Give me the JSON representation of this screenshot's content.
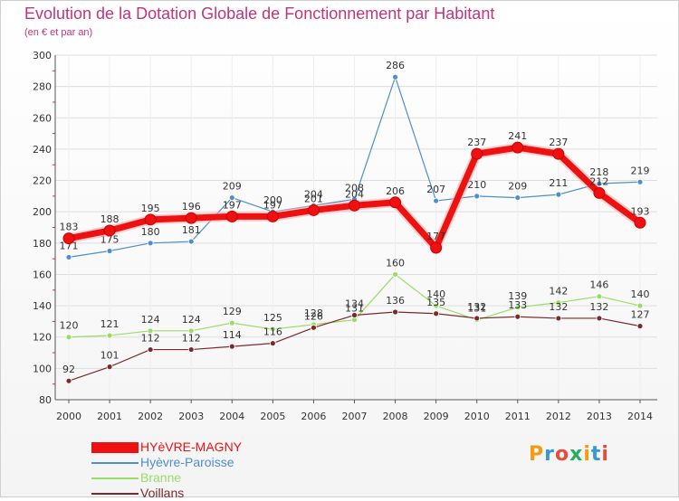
{
  "chart_data": {
    "type": "line",
    "title": "Evolution de la Dotation Globale de Fonctionnement par Habitant",
    "subtitle": "(en € et par an)",
    "xlabel": "",
    "ylabel": "",
    "ylim": [
      80,
      300
    ],
    "yticks": [
      80,
      100,
      120,
      140,
      160,
      180,
      200,
      220,
      240,
      260,
      280,
      300
    ],
    "grid": true,
    "legend": "bottom-left",
    "categories": [
      "2000",
      "2001",
      "2002",
      "2003",
      "2004",
      "2005",
      "2006",
      "2007",
      "2008",
      "2009",
      "2010",
      "2011",
      "2012",
      "2013",
      "2014"
    ],
    "series": [
      {
        "name": "Hyèvre-Paroisse",
        "color": "#4d8fcc",
        "values": [
          171,
          175,
          180,
          181,
          209,
          200,
          204,
          208,
          286,
          207,
          210,
          209,
          211,
          218,
          219
        ]
      },
      {
        "name": "Branne",
        "color": "#99dd66",
        "values": [
          120,
          121,
          124,
          124,
          129,
          125,
          128,
          131,
          160,
          140,
          131,
          139,
          142,
          146,
          140
        ]
      },
      {
        "name": "Voillans",
        "color": "#7a2a2a",
        "values": [
          92,
          101,
          112,
          112,
          114,
          116,
          126,
          134,
          136,
          135,
          132,
          133,
          132,
          132,
          127
        ]
      },
      {
        "name": "HYèVRE-MAGNY",
        "color": "#ee1111",
        "values": [
          183,
          188,
          195,
          196,
          197,
          197,
          201,
          204,
          206,
          177,
          237,
          241,
          237,
          212,
          193
        ]
      }
    ]
  },
  "legend_items": [
    {
      "label": "HYèVRE-MAGNY",
      "color": "#ee1111",
      "thickness": "thick"
    },
    {
      "label": "Hyèvre-Paroisse",
      "color": "#4d8fcc",
      "thickness": "thin"
    },
    {
      "label": "Branne",
      "color": "#99dd66",
      "thickness": "thin"
    },
    {
      "label": "Voillans",
      "color": "#7a2a2a",
      "thickness": "thin"
    }
  ],
  "logo": {
    "text": "Proxiti",
    "colors": [
      "#f39c12",
      "#3498db",
      "#e74c3c",
      "#27ae60",
      "#f39c12",
      "#3498db",
      "#e74c3c"
    ]
  }
}
